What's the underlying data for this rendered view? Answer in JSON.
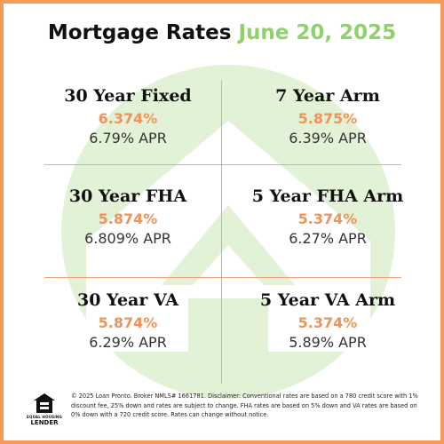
{
  "title": {
    "main": "Mortgage Rates",
    "date": "June 20, 2025"
  },
  "colors": {
    "border": "#f49b5b",
    "rate": "#f0935a",
    "date": "#8fd16b",
    "watermark": "#d9efcc"
  },
  "watermark_icon": "house-arrow-logo-icon",
  "rates": [
    {
      "name": "30 Year Fixed",
      "rate": "6.374%",
      "apr": "6.79% APR"
    },
    {
      "name": "7 Year Arm",
      "rate": "5.875%",
      "apr": "6.39% APR"
    },
    {
      "name": "30 Year FHA",
      "rate": "5.874%",
      "apr": "6.809% APR"
    },
    {
      "name": "5 Year FHA Arm",
      "rate": "5.374%",
      "apr": "6.27% APR"
    },
    {
      "name": "30 Year VA",
      "rate": "5.874%",
      "apr": "6.29% APR"
    },
    {
      "name": "5 Year VA Arm",
      "rate": "5.374%",
      "apr": "5.89% APR"
    }
  ],
  "footer": {
    "logo_icon": "equal-housing-lender-icon",
    "logo_small": "EQUAL HOUSING",
    "logo_big": "LENDER",
    "disclaimer": "© 2025 Loan Pronto. Broker NMLS# 1661781. Disclaimer: Conventional rates are based on a 780 credit score with 1% discount fee, 25% down and rates are subject to change. FHA rates are based on 5% down and VA rates are based on 0% down with a 720 credit score. Rates can change without notice."
  }
}
